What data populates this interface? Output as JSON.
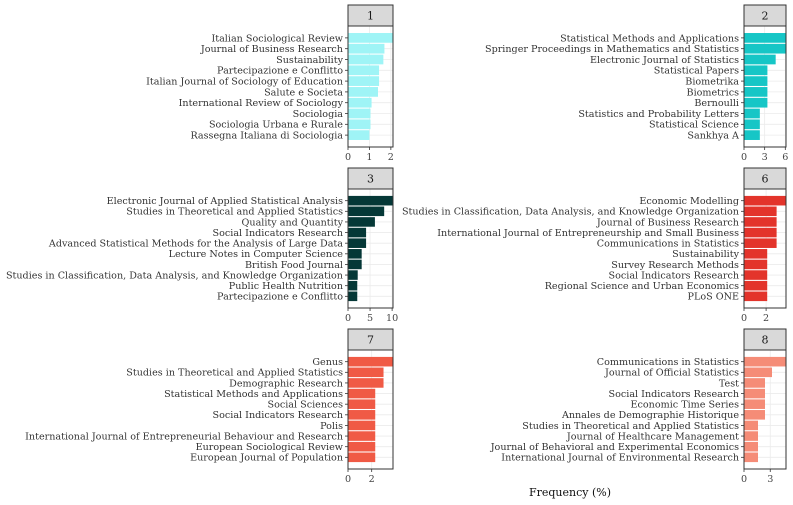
{
  "chart_data": {
    "type": "bar",
    "orientation": "horizontal",
    "xlabel": "Frequency (%)",
    "panels": [
      {
        "strip": "1",
        "color": "#9FF4F6",
        "xlim": [
          0,
          2.1
        ],
        "ticks": [
          0,
          1,
          2
        ],
        "categories": [
          "Italian Sociological Review",
          "Journal of Business Research",
          "Sustainability",
          "Partecipazione e Conflitto",
          "Italian Journal of Sociology of Education",
          "Salute e Societa",
          "International Review of Sociology",
          "Sociologia",
          "Sociologia Urbana e Rurale",
          "Rassegna Italiana di Sociologia"
        ],
        "values": [
          2.1,
          1.7,
          1.65,
          1.45,
          1.45,
          1.4,
          1.1,
          1.05,
          1.05,
          1.0
        ]
      },
      {
        "strip": "2",
        "color": "#16C6C6",
        "xlim": [
          0,
          6.1
        ],
        "ticks": [
          0,
          3,
          6
        ],
        "categories": [
          "Statistical Methods and Applications",
          "Springer Proceedings in Mathematics and Statistics",
          "Electronic Journal of Statistics",
          "Statistical Papers",
          "Biometrika",
          "Biometrics",
          "Bernoulli",
          "Statistics and Probability Letters",
          "Statistical Science",
          "Sankhya A"
        ],
        "values": [
          6.1,
          6.1,
          4.6,
          3.4,
          3.4,
          3.4,
          3.4,
          2.3,
          2.3,
          2.3
        ]
      },
      {
        "strip": "3",
        "color": "#053837",
        "xlim": [
          0,
          10.2
        ],
        "ticks": [
          0,
          5,
          10
        ],
        "categories": [
          "Electronic Journal of Applied Statistical Analysis",
          "Studies in Theoretical and Applied Statistics",
          "Quality and Quantity",
          "Social Indicators Research",
          "Advanced Statistical Methods for the Analysis of Large Data",
          "Lecture Notes in Computer Science",
          "British Food Journal",
          "Studies in Classification, Data Analysis, and Knowledge Organization",
          "Public Health Nutrition",
          "Partecipazione e Conflitto"
        ],
        "values": [
          10.2,
          8.2,
          6.1,
          4.1,
          4.1,
          3.1,
          3.1,
          2.2,
          2.1,
          2.1
        ]
      },
      {
        "strip": "6",
        "color": "#E3342B",
        "xlim": [
          0,
          3.8
        ],
        "ticks": [
          0,
          2
        ],
        "categories": [
          "Economic Modelling",
          "Studies in Classification, Data Analysis, and Knowledge Organization",
          "Journal of Business Research",
          "International Journal of Entrepreneurship and Small Business",
          "Communications in Statistics",
          "Sustainability",
          "Survey Research Methods",
          "Social Indicators Research",
          "Regional Science and Urban Economics",
          "PLoS ONE"
        ],
        "values": [
          3.8,
          2.95,
          2.95,
          2.95,
          2.95,
          2.1,
          2.1,
          2.1,
          2.1,
          2.1
        ]
      },
      {
        "strip": "7",
        "color": "#F05A45",
        "xlim": [
          0,
          3.8
        ],
        "ticks": [
          0,
          2
        ],
        "categories": [
          "Genus",
          "Studies in Theoretical and Applied Statistics",
          "Demographic Research",
          "Statistical Methods and Applications",
          "Social Sciences",
          "Social Indicators Research",
          "Polis",
          "International Journal of Entrepreneurial Behaviour and Research",
          "European Sociological Review",
          "European Journal of Population"
        ],
        "values": [
          3.8,
          3.0,
          3.0,
          2.3,
          2.3,
          2.3,
          2.3,
          2.3,
          2.3,
          2.3
        ]
      },
      {
        "strip": "8",
        "color": "#F58C77",
        "xlim": [
          0,
          4.8
        ],
        "ticks": [
          0,
          3
        ],
        "categories": [
          "Communications in Statistics",
          "Journal of Official Statistics",
          "Test",
          "Social Indicators Research",
          "Economic Time Series",
          "Annales de Demographie Historique",
          "Studies in Theoretical and Applied Statistics",
          "Journal of Healthcare Management",
          "Journal of Behavioral and Experimental Economics",
          "International Journal of Environmental Research"
        ],
        "values": [
          4.8,
          3.2,
          2.4,
          2.4,
          2.4,
          2.4,
          1.6,
          1.6,
          1.6,
          1.6
        ]
      }
    ]
  }
}
